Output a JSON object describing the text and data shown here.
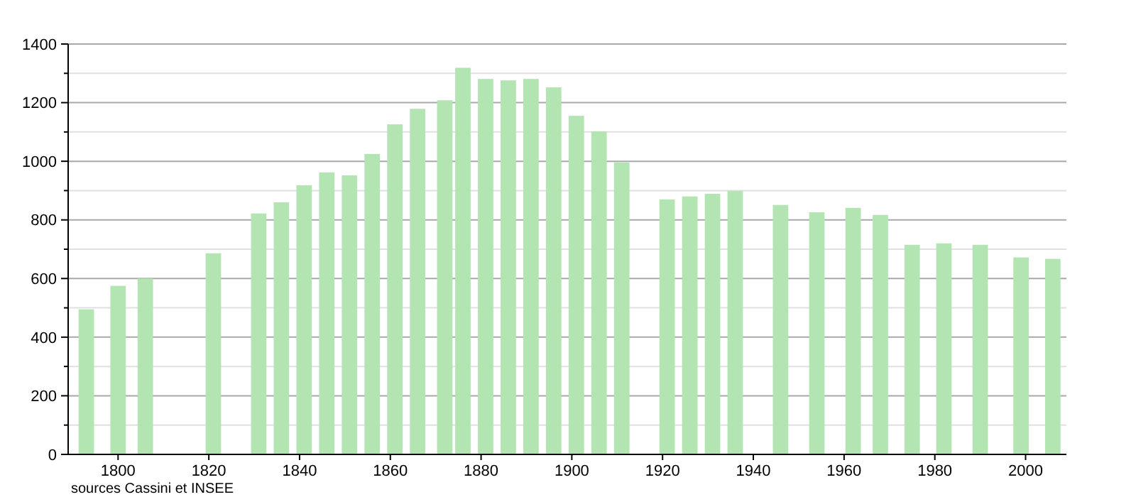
{
  "chart_data": {
    "type": "bar",
    "x": [
      1793,
      1800,
      1806,
      1821,
      1831,
      1836,
      1841,
      1846,
      1851,
      1856,
      1861,
      1866,
      1872,
      1876,
      1881,
      1886,
      1891,
      1896,
      1901,
      1906,
      1911,
      1921,
      1926,
      1931,
      1936,
      1946,
      1954,
      1962,
      1968,
      1975,
      1982,
      1990,
      1999,
      2006
    ],
    "values": [
      495,
      575,
      600,
      686,
      822,
      860,
      918,
      962,
      952,
      1025,
      1126,
      1179,
      1208,
      1319,
      1281,
      1276,
      1281,
      1252,
      1155,
      1102,
      996,
      870,
      880,
      889,
      899,
      851,
      826,
      841,
      817,
      715,
      720,
      715,
      672,
      667
    ],
    "color": "#b3e5b3",
    "xlim": [
      1789,
      2009
    ],
    "xticks": [
      1800,
      1820,
      1840,
      1860,
      1880,
      1900,
      1920,
      1940,
      1960,
      1980,
      2000
    ],
    "ylim": [
      0,
      1400
    ],
    "yticks": [
      0,
      {
        "value": 100,
        "label": null
      },
      200,
      {
        "value": 300,
        "label": null
      },
      400,
      {
        "value": 500,
        "label": null
      },
      600,
      {
        "value": 700,
        "label": null
      },
      800,
      {
        "value": 900,
        "label": null
      },
      1000,
      {
        "value": 1100,
        "label": null
      },
      1200,
      {
        "value": 1300,
        "label": null
      },
      1400
    ],
    "grid": "y",
    "annotations": [
      "sources Cassini et INSEE"
    ]
  }
}
